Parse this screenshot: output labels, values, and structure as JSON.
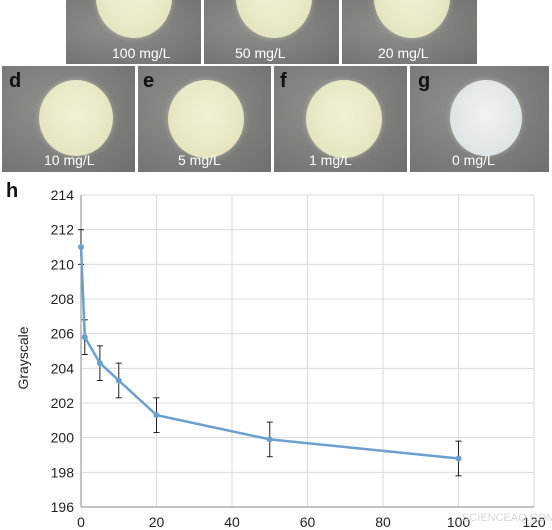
{
  "panels_top": [
    {
      "label": "100 mg/L"
    },
    {
      "label": "50 mg/L"
    },
    {
      "label": "20 mg/L"
    }
  ],
  "panels_bottom": [
    {
      "letter": "d",
      "label": "10 mg/L"
    },
    {
      "letter": "e",
      "label": "5 mg/L"
    },
    {
      "letter": "f",
      "label": "1 mg/L"
    },
    {
      "letter": "g",
      "label": "0 mg/L"
    }
  ],
  "chart_panel_letter": "h",
  "watermark": "SCIENCEAQ.COM",
  "chart_data": {
    "type": "line",
    "title": "",
    "xlabel": "",
    "ylabel": "Grayscale",
    "xlim": [
      0,
      120
    ],
    "ylim": [
      196,
      214
    ],
    "x_ticks": [
      0,
      20,
      40,
      60,
      80,
      100,
      120
    ],
    "y_ticks": [
      196,
      198,
      200,
      202,
      204,
      206,
      208,
      210,
      212,
      214
    ],
    "grid": true,
    "series_color": "#6a9fd0",
    "points": [
      {
        "x": 0,
        "y": 211.0,
        "err": 1.0
      },
      {
        "x": 1,
        "y": 205.8,
        "err": 1.0
      },
      {
        "x": 5,
        "y": 204.3,
        "err": 1.0
      },
      {
        "x": 10,
        "y": 203.3,
        "err": 1.0
      },
      {
        "x": 20,
        "y": 201.3,
        "err": 1.0
      },
      {
        "x": 50,
        "y": 199.9,
        "err": 1.0
      },
      {
        "x": 100,
        "y": 198.8,
        "err": 1.0
      }
    ]
  }
}
